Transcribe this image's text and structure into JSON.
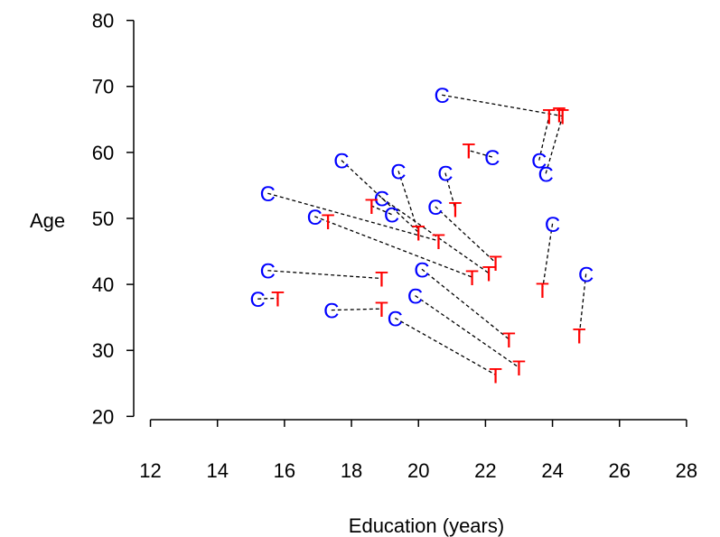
{
  "chart_data": {
    "type": "scatter",
    "title": "",
    "xlabel": "Education (years)",
    "ylabel": "Age",
    "xlim": [
      11.5,
      29
    ],
    "ylim": [
      19.5,
      82
    ],
    "xticks": [
      12,
      14,
      16,
      18,
      20,
      22,
      24,
      26,
      28
    ],
    "yticks": [
      20,
      30,
      40,
      50,
      60,
      70,
      80
    ],
    "grid": false,
    "legend": "none",
    "series": [
      {
        "marker": "C",
        "color": "#0000ff",
        "points": [
          [
            20.7,
            68.7
          ],
          [
            17.7,
            58.8
          ],
          [
            19.4,
            57.2
          ],
          [
            20.8,
            56.9
          ],
          [
            22.2,
            59.3
          ],
          [
            23.6,
            58.8
          ],
          [
            23.8,
            56.8
          ],
          [
            15.5,
            53.8
          ],
          [
            18.9,
            53.1
          ],
          [
            19.2,
            50.6
          ],
          [
            20.5,
            51.8
          ],
          [
            16.9,
            50.3
          ],
          [
            24.0,
            49.2
          ],
          [
            15.5,
            42.1
          ],
          [
            20.1,
            42.3
          ],
          [
            25.0,
            41.6
          ],
          [
            15.2,
            37.8
          ],
          [
            19.9,
            38.3
          ],
          [
            17.4,
            36.1
          ],
          [
            19.3,
            34.9
          ]
        ]
      },
      {
        "marker": "T",
        "color": "#ff0000",
        "points": [
          [
            23.9,
            65.5
          ],
          [
            24.2,
            65.8
          ],
          [
            24.3,
            65.5
          ],
          [
            21.5,
            60.3
          ],
          [
            18.6,
            51.9
          ],
          [
            21.1,
            51.4
          ],
          [
            17.3,
            49.6
          ],
          [
            20.0,
            47.9
          ],
          [
            20.6,
            46.6
          ],
          [
            22.3,
            43.3
          ],
          [
            22.1,
            41.7
          ],
          [
            21.6,
            41.1
          ],
          [
            18.9,
            40.9
          ],
          [
            23.7,
            39.2
          ],
          [
            15.8,
            37.9
          ],
          [
            18.9,
            36.3
          ],
          [
            22.7,
            31.7
          ],
          [
            24.8,
            32.3
          ],
          [
            23.0,
            27.4
          ],
          [
            22.3,
            26.3
          ]
        ]
      }
    ],
    "pairs": [
      [
        [
          20.7,
          68.7
        ],
        [
          24.3,
          65.5
        ]
      ],
      [
        [
          23.6,
          58.8
        ],
        [
          23.9,
          65.5
        ]
      ],
      [
        [
          23.8,
          56.8
        ],
        [
          24.3,
          65.5
        ]
      ],
      [
        [
          22.2,
          59.3
        ],
        [
          21.5,
          60.3
        ]
      ],
      [
        [
          17.7,
          58.8
        ],
        [
          20.0,
          47.9
        ]
      ],
      [
        [
          19.4,
          57.2
        ],
        [
          20.0,
          47.9
        ]
      ],
      [
        [
          20.8,
          56.9
        ],
        [
          21.1,
          51.4
        ]
      ],
      [
        [
          18.9,
          53.1
        ],
        [
          22.1,
          41.7
        ]
      ],
      [
        [
          19.2,
          50.6
        ],
        [
          18.6,
          51.9
        ]
      ],
      [
        [
          20.5,
          51.8
        ],
        [
          22.3,
          43.3
        ]
      ],
      [
        [
          15.5,
          53.8
        ],
        [
          20.6,
          46.6
        ]
      ],
      [
        [
          16.9,
          50.3
        ],
        [
          21.6,
          41.1
        ]
      ],
      [
        [
          24.0,
          49.2
        ],
        [
          23.7,
          39.2
        ]
      ],
      [
        [
          15.5,
          42.1
        ],
        [
          18.9,
          40.9
        ]
      ],
      [
        [
          20.1,
          42.3
        ],
        [
          22.7,
          31.7
        ]
      ],
      [
        [
          25.0,
          41.6
        ],
        [
          24.8,
          32.3
        ]
      ],
      [
        [
          15.2,
          37.8
        ],
        [
          15.8,
          37.9
        ]
      ],
      [
        [
          19.9,
          38.3
        ],
        [
          23.0,
          27.4
        ]
      ],
      [
        [
          17.4,
          36.1
        ],
        [
          18.9,
          36.3
        ]
      ],
      [
        [
          19.3,
          34.9
        ],
        [
          22.3,
          26.3
        ]
      ]
    ]
  }
}
